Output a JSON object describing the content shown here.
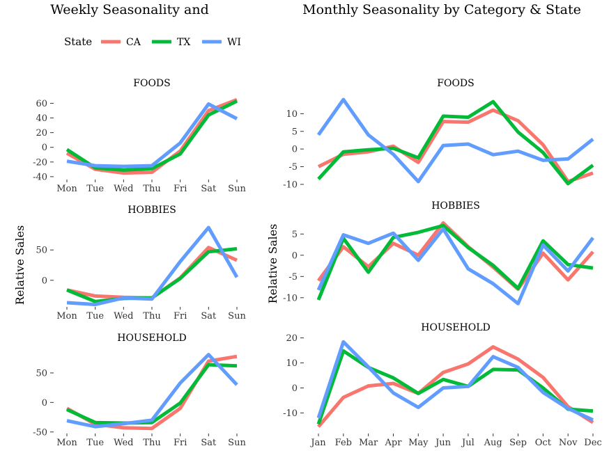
{
  "titles": {
    "left": "Weekly Seasonality and",
    "right": "Monthly Seasonality by Category & State"
  },
  "legend": {
    "title": "State",
    "entries": [
      {
        "label": "CA",
        "color": "#F8766D"
      },
      {
        "label": "TX",
        "color": "#00BA38"
      },
      {
        "label": "WI",
        "color": "#619CFF"
      }
    ]
  },
  "chart_data": [
    {
      "type": "line",
      "panel": "weekly",
      "ylabel": "Relative Sales",
      "x": [
        "Mon",
        "Tue",
        "Wed",
        "Thu",
        "Fri",
        "Sat",
        "Sun"
      ],
      "facets": [
        {
          "title": "FOODS",
          "yticks": [
            -40,
            -20,
            0,
            20,
            40,
            60
          ],
          "ylim": [
            -42,
            68
          ],
          "series": [
            {
              "name": "CA",
              "values": [
                -8,
                -30,
                -35,
                -34,
                -5,
                50,
                65
              ]
            },
            {
              "name": "TX",
              "values": [
                -3,
                -28,
                -31,
                -29,
                -9,
                44,
                63
              ]
            },
            {
              "name": "WI",
              "values": [
                -19,
                -25,
                -26,
                -25,
                6,
                59,
                39
              ]
            }
          ]
        },
        {
          "title": "HOBBIES",
          "yticks": [
            0,
            50
          ],
          "ylim": [
            -45,
            95
          ],
          "series": [
            {
              "name": "CA",
              "values": [
                -16,
                -26,
                -28,
                -29,
                4,
                54,
                33
              ]
            },
            {
              "name": "TX",
              "values": [
                -16,
                -35,
                -30,
                -29,
                3,
                47,
                52
              ]
            },
            {
              "name": "WI",
              "values": [
                -37,
                -40,
                -29,
                -31,
                31,
                87,
                5
              ]
            }
          ]
        },
        {
          "title": "HOUSEHOLD",
          "yticks": [
            -50,
            0,
            50
          ],
          "ylim": [
            -55,
            90
          ],
          "series": [
            {
              "name": "CA",
              "values": [
                -10,
                -37,
                -43,
                -44,
                -10,
                70,
                78
              ]
            },
            {
              "name": "TX",
              "values": [
                -12,
                -34,
                -35,
                -34,
                -1,
                64,
                62
              ]
            },
            {
              "name": "WI",
              "values": [
                -31,
                -41,
                -36,
                -30,
                33,
                81,
                30
              ]
            }
          ]
        }
      ]
    },
    {
      "type": "line",
      "panel": "monthly",
      "ylabel": "Relative Sales",
      "x": [
        "Jan",
        "Feb",
        "Mar",
        "Apr",
        "May",
        "Jun",
        "Jul",
        "Aug",
        "Sep",
        "Oct",
        "Nov",
        "Dec"
      ],
      "facets": [
        {
          "title": "FOODS",
          "yticks": [
            -10,
            -5,
            0,
            5,
            10
          ],
          "ylim": [
            -11,
            15
          ],
          "series": [
            {
              "name": "CA",
              "values": [
                -5,
                -1.5,
                -0.8,
                0.8,
                -3.8,
                7.8,
                7.6,
                11,
                8,
                1.2,
                -9.2,
                -6.8
              ]
            },
            {
              "name": "TX",
              "values": [
                -8.5,
                -0.8,
                -0.2,
                0.2,
                -2.5,
                9.3,
                9,
                13.4,
                4.8,
                -1,
                -9.8,
                -4.6
              ]
            },
            {
              "name": "WI",
              "values": [
                4,
                14,
                4,
                -1.5,
                -9.2,
                1,
                1.4,
                -1.6,
                -0.6,
                -3.2,
                -2.8,
                2.8
              ]
            }
          ]
        },
        {
          "title": "HOBBIES",
          "yticks": [
            -10,
            -5,
            0,
            5
          ],
          "ylim": [
            -12,
            8
          ],
          "series": [
            {
              "name": "CA",
              "values": [
                -6,
                2,
                -2.7,
                2.8,
                0,
                7.6,
                2,
                -2.8,
                -8,
                0.5,
                -5.8,
                0.8
              ]
            },
            {
              "name": "TX",
              "values": [
                -10.5,
                4,
                -4,
                4.2,
                5.4,
                7,
                1.8,
                -2.4,
                -7.8,
                3.4,
                -2.2,
                -3
              ]
            },
            {
              "name": "WI",
              "values": [
                -8.2,
                4.8,
                2.8,
                5.2,
                -1.2,
                6.2,
                -3.2,
                -6.7,
                -11.4,
                2.4,
                -3.7,
                4.1
              ]
            }
          ]
        },
        {
          "title": "HOUSEHOLD",
          "yticks": [
            -10,
            0,
            10,
            20
          ],
          "ylim": [
            -16,
            21
          ],
          "series": [
            {
              "name": "CA",
              "values": [
                -15.5,
                -3.8,
                0.8,
                1.8,
                -2.2,
                6.2,
                9.6,
                16.4,
                11.5,
                4.2,
                -7.5,
                -13.8
              ]
            },
            {
              "name": "TX",
              "values": [
                -14.5,
                14.8,
                8.2,
                4,
                -2.2,
                3.4,
                0.6,
                7.4,
                7.2,
                0,
                -8.5,
                -9.2
              ]
            },
            {
              "name": "WI",
              "values": [
                -12,
                18.4,
                8.4,
                -2,
                -7.8,
                0,
                0.6,
                12.5,
                8.2,
                -1.8,
                -8.2,
                -12.8
              ]
            }
          ]
        }
      ]
    }
  ]
}
